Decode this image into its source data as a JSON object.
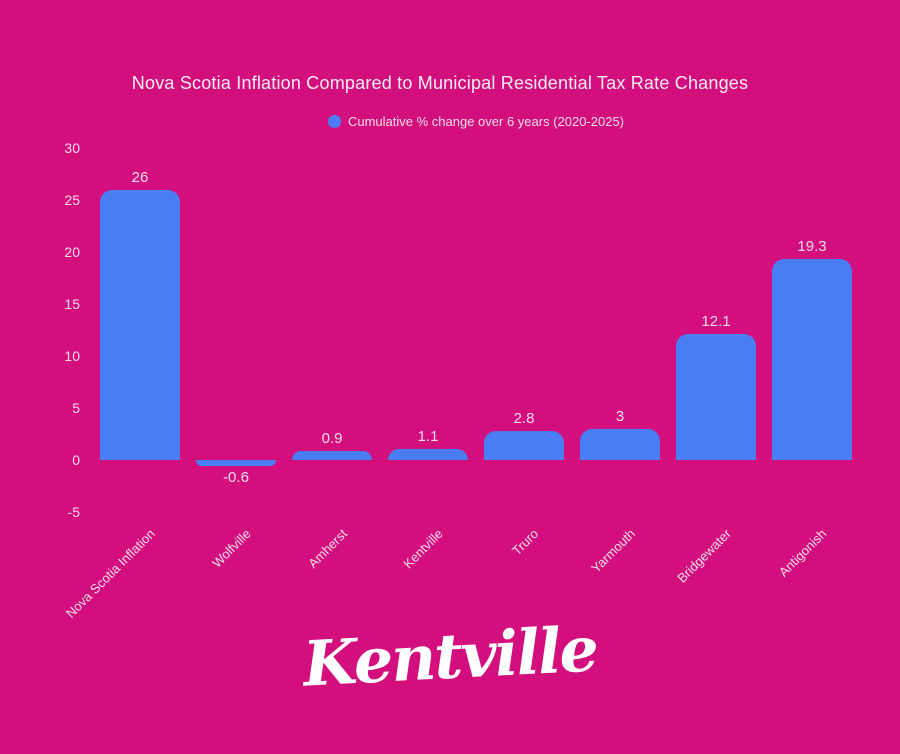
{
  "title": "Nova Scotia Inflation Compared to Municipal Residential Tax Rate Changes",
  "legend": {
    "label": "Cumulative % change over 6 years (2020-2025)"
  },
  "chart_data": {
    "type": "bar",
    "title": "Nova Scotia Inflation Compared to Municipal Residential Tax Rate Changes",
    "legend_entries": [
      "Cumulative % change over 6 years (2020-2025)"
    ],
    "legend_position": "top-center",
    "categories": [
      "Nova Scotia Inflation",
      "Wolfville",
      "Amherst",
      "Kentville",
      "Truro",
      "Yarmouth",
      "Bridgewater",
      "Antigonish"
    ],
    "values": [
      26,
      -0.6,
      0.9,
      1.1,
      2.8,
      3,
      12.1,
      19.3
    ],
    "value_labels": [
      "26",
      "-0.6",
      "0.9",
      "1.1",
      "2.8",
      "3",
      "12.1",
      "19.3"
    ],
    "y_ticks": [
      30,
      25,
      20,
      15,
      10,
      5,
      0,
      -5
    ],
    "ylim": [
      -5,
      30
    ],
    "xlabel": "",
    "ylabel": "",
    "grid": false,
    "x_tick_rotation": -45
  },
  "colors": {
    "background": "#d30f7e",
    "bar": "#4a7df2",
    "legend_marker": "#4a7df2",
    "title_text": "#f8ecf3",
    "label_text": "#f3dcea",
    "logo_text": "#ffffff"
  },
  "logo": {
    "text": "Kentville"
  }
}
